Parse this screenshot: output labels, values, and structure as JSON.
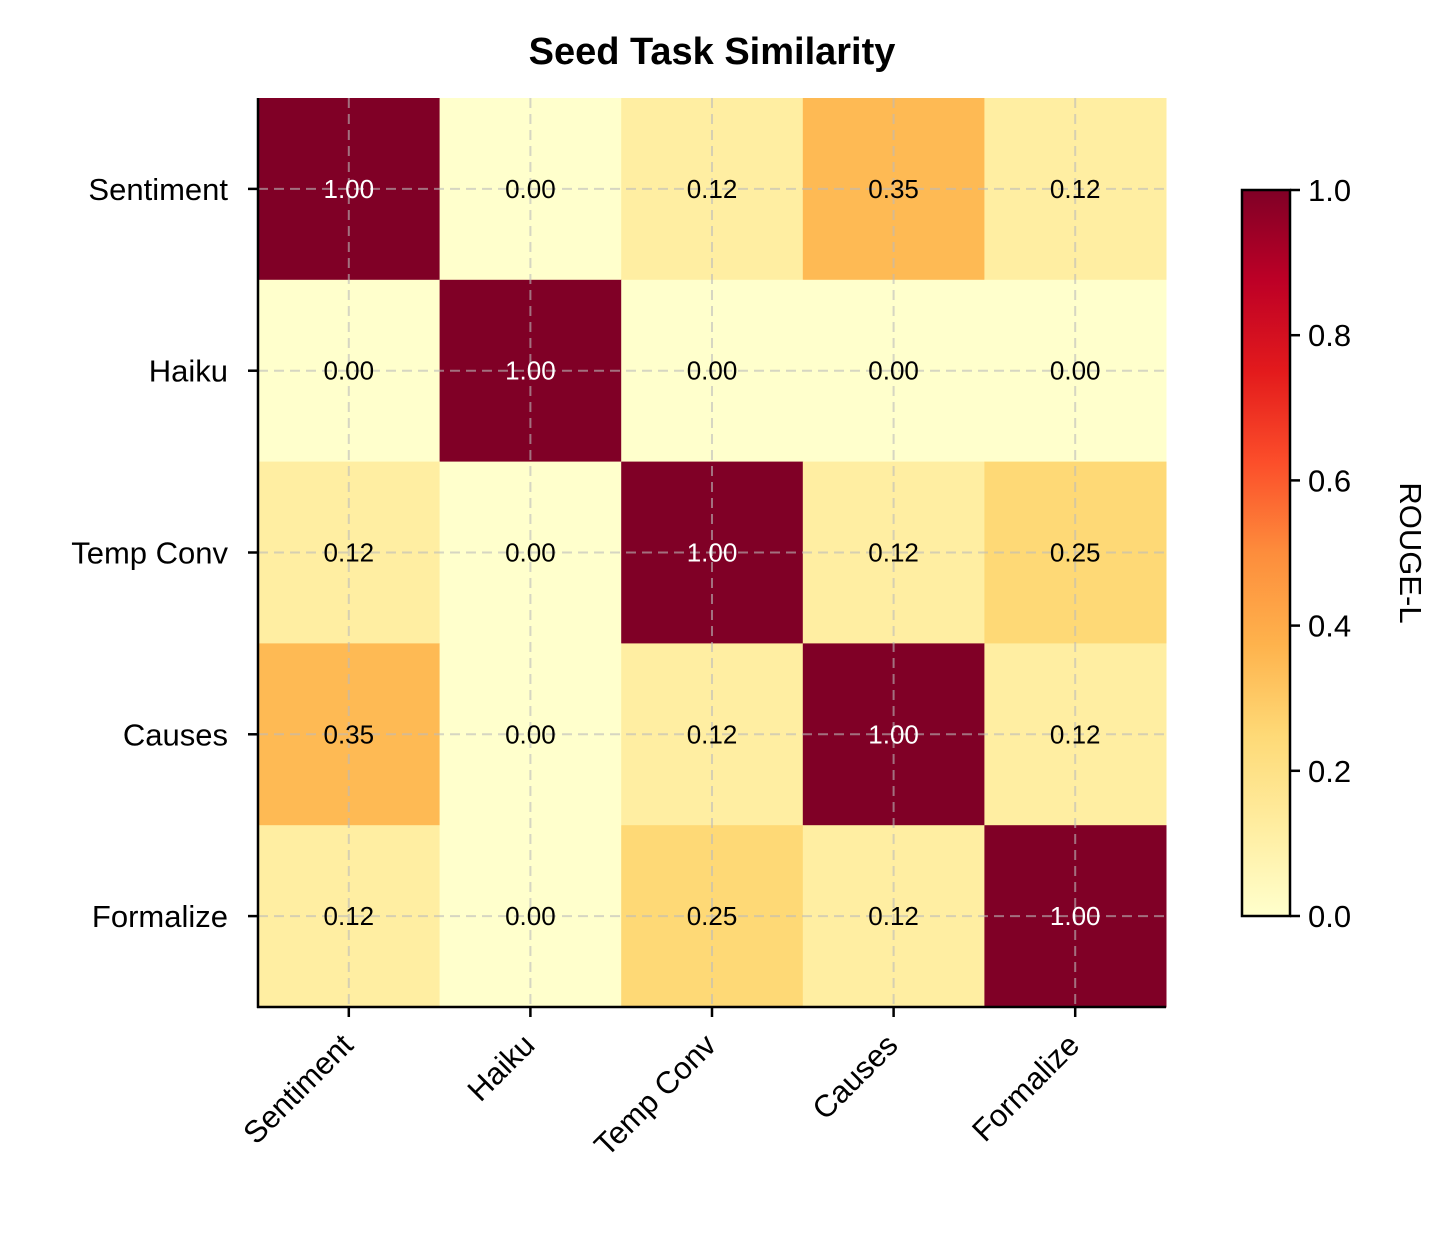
{
  "chart_data": {
    "type": "heatmap",
    "title": "Seed Task Similarity",
    "x_categories": [
      "Sentiment",
      "Haiku",
      "Temp Conv",
      "Causes",
      "Formalize"
    ],
    "y_categories": [
      "Sentiment",
      "Haiku",
      "Temp Conv",
      "Causes",
      "Formalize"
    ],
    "values": [
      [
        1.0,
        0.0,
        0.12,
        0.35,
        0.12
      ],
      [
        0.0,
        1.0,
        0.0,
        0.0,
        0.0
      ],
      [
        0.12,
        0.0,
        1.0,
        0.12,
        0.25
      ],
      [
        0.35,
        0.0,
        0.12,
        1.0,
        0.12
      ],
      [
        0.12,
        0.0,
        0.25,
        0.12,
        1.0
      ]
    ],
    "value_format": "0.00",
    "colormap": "YlOrRd",
    "colormap_stops": [
      "#ffffcc",
      "#ffeda0",
      "#fed976",
      "#feb24c",
      "#fd8d3c",
      "#fc4e2a",
      "#e31a1c",
      "#bd0026",
      "#800026"
    ],
    "vmin": 0.0,
    "vmax": 1.0,
    "colorbar": {
      "label": "ROUGE-L",
      "ticks": [
        "0.0",
        "0.2",
        "0.4",
        "0.6",
        "0.8",
        "1.0"
      ]
    },
    "grid": true,
    "x_tick_rotation": 45
  }
}
